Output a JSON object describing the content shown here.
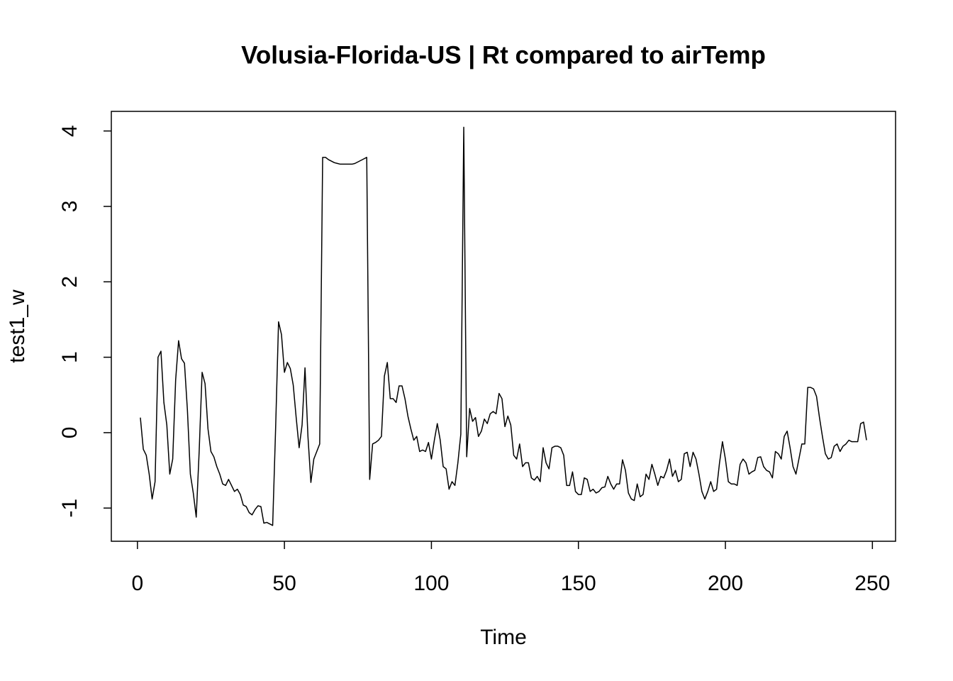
{
  "chart_data": {
    "type": "line",
    "title": "Volusia-Florida-US | Rt compared to airTemp",
    "x_label": "Time",
    "y_label": "test1_w",
    "color": "#000000",
    "xlim": [
      -8.88,
      257.88
    ],
    "ylim": [
      -1.44,
      4.26
    ],
    "xticks": [
      0,
      50,
      100,
      150,
      200,
      250
    ],
    "yticks": [
      -1,
      0,
      1,
      2,
      3,
      4
    ],
    "x": [
      1,
      2,
      3,
      4,
      5,
      6,
      7,
      8,
      9,
      10,
      11,
      12,
      13,
      14,
      15,
      16,
      17,
      18,
      19,
      20,
      21,
      22,
      23,
      24,
      25,
      26,
      27,
      28,
      29,
      30,
      31,
      32,
      33,
      34,
      35,
      36,
      37,
      38,
      39,
      40,
      41,
      42,
      43,
      44,
      45,
      46,
      47,
      48,
      49,
      50,
      51,
      52,
      53,
      54,
      55,
      56,
      57,
      58,
      59,
      60,
      61,
      62,
      63,
      64,
      65,
      66,
      67,
      68,
      69,
      70,
      71,
      72,
      73,
      74,
      75,
      76,
      77,
      78,
      79,
      80,
      81,
      82,
      83,
      84,
      85,
      86,
      87,
      88,
      89,
      90,
      91,
      92,
      93,
      94,
      95,
      96,
      97,
      98,
      99,
      100,
      101,
      102,
      103,
      104,
      105,
      106,
      107,
      108,
      109,
      110,
      111,
      112,
      113,
      114,
      115,
      116,
      117,
      118,
      119,
      120,
      121,
      122,
      123,
      124,
      125,
      126,
      127,
      128,
      129,
      130,
      131,
      132,
      133,
      134,
      135,
      136,
      137,
      138,
      139,
      140,
      141,
      142,
      143,
      144,
      145,
      146,
      147,
      148,
      149,
      150,
      151,
      152,
      153,
      154,
      155,
      156,
      157,
      158,
      159,
      160,
      161,
      162,
      163,
      164,
      165,
      166,
      167,
      168,
      169,
      170,
      171,
      172,
      173,
      174,
      175,
      176,
      177,
      178,
      179,
      180,
      181,
      182,
      183,
      184,
      185,
      186,
      187,
      188,
      189,
      190,
      191,
      192,
      193,
      194,
      195,
      196,
      197,
      198,
      199,
      200,
      201,
      202,
      203,
      204,
      205,
      206,
      207,
      208,
      209,
      210,
      211,
      212,
      213,
      214,
      215,
      216,
      217,
      218,
      219,
      220,
      221,
      222,
      223,
      224,
      225,
      226,
      227,
      228,
      229,
      230,
      231,
      232,
      233,
      234,
      235,
      236,
      237,
      238,
      239,
      240,
      241,
      242,
      243,
      244,
      245,
      246,
      247,
      248
    ],
    "values": [
      0.2,
      -0.22,
      -0.3,
      -0.55,
      -0.88,
      -0.65,
      1.0,
      1.08,
      0.4,
      0.1,
      -0.55,
      -0.35,
      0.7,
      1.22,
      0.98,
      0.92,
      0.3,
      -0.55,
      -0.8,
      -1.12,
      -0.25,
      0.8,
      0.65,
      0.05,
      -0.25,
      -0.32,
      -0.45,
      -0.55,
      -0.68,
      -0.7,
      -0.62,
      -0.7,
      -0.78,
      -0.75,
      -0.82,
      -0.96,
      -0.98,
      -1.06,
      -1.09,
      -1.02,
      -0.97,
      -0.98,
      -1.2,
      -1.19,
      -1.21,
      -1.23,
      0.05,
      1.47,
      1.3,
      0.8,
      0.93,
      0.85,
      0.63,
      0.2,
      -0.2,
      0.1,
      0.86,
      -0.05,
      -0.66,
      -0.35,
      -0.25,
      -0.15,
      3.65,
      3.65,
      3.62,
      3.6,
      3.58,
      3.57,
      3.56,
      3.56,
      3.56,
      3.56,
      3.56,
      3.57,
      3.59,
      3.61,
      3.63,
      3.65,
      -0.62,
      -0.15,
      -0.13,
      -0.1,
      -0.05,
      0.75,
      0.93,
      0.45,
      0.45,
      0.4,
      0.62,
      0.62,
      0.45,
      0.22,
      0.05,
      -0.1,
      -0.05,
      -0.25,
      -0.23,
      -0.25,
      -0.13,
      -0.35,
      -0.1,
      0.12,
      -0.1,
      -0.45,
      -0.48,
      -0.75,
      -0.65,
      -0.7,
      -0.4,
      -0.02,
      4.05,
      -0.32,
      0.32,
      0.15,
      0.2,
      -0.05,
      0.02,
      0.18,
      0.12,
      0.25,
      0.28,
      0.25,
      0.52,
      0.45,
      0.08,
      0.22,
      0.1,
      -0.3,
      -0.35,
      -0.15,
      -0.45,
      -0.4,
      -0.4,
      -0.6,
      -0.63,
      -0.58,
      -0.65,
      -0.2,
      -0.4,
      -0.48,
      -0.2,
      -0.18,
      -0.18,
      -0.2,
      -0.3,
      -0.7,
      -0.7,
      -0.52,
      -0.78,
      -0.82,
      -0.82,
      -0.6,
      -0.62,
      -0.78,
      -0.75,
      -0.8,
      -0.78,
      -0.73,
      -0.72,
      -0.58,
      -0.68,
      -0.75,
      -0.68,
      -0.68,
      -0.36,
      -0.5,
      -0.8,
      -0.88,
      -0.9,
      -0.68,
      -0.85,
      -0.82,
      -0.55,
      -0.62,
      -0.42,
      -0.55,
      -0.7,
      -0.58,
      -0.6,
      -0.5,
      -0.35,
      -0.58,
      -0.5,
      -0.65,
      -0.62,
      -0.28,
      -0.26,
      -0.45,
      -0.26,
      -0.35,
      -0.55,
      -0.78,
      -0.88,
      -0.78,
      -0.65,
      -0.78,
      -0.75,
      -0.4,
      -0.12,
      -0.35,
      -0.65,
      -0.68,
      -0.68,
      -0.7,
      -0.42,
      -0.35,
      -0.4,
      -0.55,
      -0.52,
      -0.5,
      -0.33,
      -0.32,
      -0.45,
      -0.5,
      -0.52,
      -0.6,
      -0.25,
      -0.28,
      -0.35,
      -0.05,
      0.02,
      -0.2,
      -0.45,
      -0.55,
      -0.35,
      -0.15,
      -0.15,
      0.6,
      0.6,
      0.58,
      0.48,
      0.2,
      -0.05,
      -0.28,
      -0.35,
      -0.33,
      -0.18,
      -0.15,
      -0.25,
      -0.18,
      -0.15,
      -0.1,
      -0.12,
      -0.12,
      -0.12,
      0.12,
      0.14,
      -0.1
    ]
  }
}
